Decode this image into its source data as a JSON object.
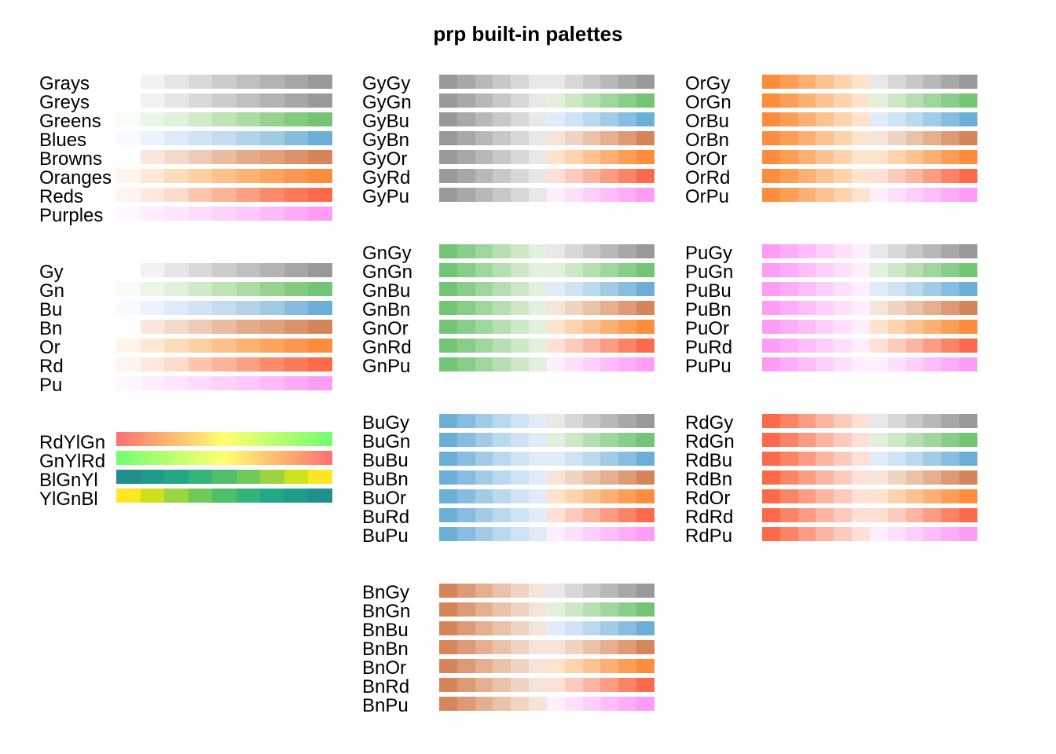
{
  "title": "prp built-in palettes",
  "colors": {
    "gray": [
      "#ffffff",
      "#f2f2f2",
      "#e6e6e6",
      "#d9d9d9",
      "#cccccc",
      "#bfbfbf",
      "#b3b3b3",
      "#a6a6a6",
      "#999999"
    ],
    "green": [
      "#f7fcf5",
      "#ebf6e8",
      "#dff1da",
      "#cfeac8",
      "#bfe3b6",
      "#acdba4",
      "#98d28f",
      "#84ca7f",
      "#74c476"
    ],
    "blue": [
      "#f7fbff",
      "#ebf3fc",
      "#dfeaf8",
      "#d2e3f3",
      "#c6dbef",
      "#b2d3e8",
      "#9fcae1",
      "#88bcdd",
      "#6baed6"
    ],
    "brown": [
      "#ffffff",
      "#f8e8e0",
      "#f3dacc",
      "#eecbb6",
      "#e9bba0",
      "#e4ab8a",
      "#dfa07a",
      "#da926a",
      "#d6855a"
    ],
    "orange": [
      "#fff5eb",
      "#fee9d6",
      "#fddcbc",
      "#fdd0a2",
      "#fdc189",
      "#fdb272",
      "#fda45e",
      "#fd9650",
      "#fd8d3c"
    ],
    "red": [
      "#fff5f0",
      "#fee9e0",
      "#fddccd",
      "#fcc5ae",
      "#fcb398",
      "#fc9f82",
      "#fc8b6c",
      "#fc7a5a",
      "#fb6a4a"
    ],
    "purple": [
      "#fff7ff",
      "#ffeefe",
      "#ffe5fd",
      "#ffdcfb",
      "#ffd2fa",
      "#ffc8f9",
      "#ffbaf8",
      "#ffaaf7",
      "#ff9cf6"
    ],
    "diverge_left": {
      "Gy": [
        "#999999",
        "#a8a8a8",
        "#b8b8b8",
        "#c8c8c8",
        "#d8d8d8",
        "#e8e8e8"
      ],
      "Gn": [
        "#74c476",
        "#89cd8a",
        "#9fd69e",
        "#b6deb2",
        "#cde7c7",
        "#e3f0dd"
      ],
      "Bu": [
        "#6baed6",
        "#86bde0",
        "#a1cbe7",
        "#bad8ee",
        "#cfe3f5",
        "#e2ecf8"
      ],
      "Bn": [
        "#d6855a",
        "#de9a74",
        "#e4ae8f",
        "#eac1a9",
        "#efd3c3",
        "#f5e4da"
      ],
      "Or": [
        "#fd8d3c",
        "#fd9e57",
        "#fdb074",
        "#fdc291",
        "#fed3ae",
        "#fee4cc"
      ],
      "Rd": [
        "#fb6a4a",
        "#fc8466",
        "#fc9c83",
        "#fcb5a1",
        "#fdcbbd",
        "#fee0d6"
      ],
      "Pu": [
        "#ff9cf6",
        "#ffadf8",
        "#ffbef9",
        "#ffcffb",
        "#ffdffc",
        "#ffeffe"
      ]
    },
    "diverge_right": {
      "Gy": [
        "#e8e8e8",
        "#d8d8d8",
        "#c8c8c8",
        "#b8b8b8",
        "#a8a8a8",
        "#999999"
      ],
      "Gn": [
        "#e3f0dd",
        "#cde7c7",
        "#b6deb2",
        "#9fd69e",
        "#89cd8a",
        "#74c476"
      ],
      "Bu": [
        "#e2ecf8",
        "#cfe3f5",
        "#bad8ee",
        "#a1cbe7",
        "#86bde0",
        "#6baed6"
      ],
      "Bn": [
        "#f5e4da",
        "#efd3c3",
        "#eac1a9",
        "#e4ae8f",
        "#de9a74",
        "#d6855a"
      ],
      "Or": [
        "#fee4cc",
        "#fed3ae",
        "#fdc291",
        "#fdb074",
        "#fd9e57",
        "#fd8d3c"
      ],
      "Rd": [
        "#fee0d6",
        "#fdcbbd",
        "#fcb5a1",
        "#fc9c83",
        "#fc8466",
        "#fb6a4a"
      ],
      "Pu": [
        "#ffeffe",
        "#ffdffc",
        "#ffcffb",
        "#ffbef9",
        "#ffadf8",
        "#ff9cf6"
      ]
    },
    "gradients": {
      "RdYlGn": "linear-gradient(to right, #ff7070, #ffb870, #ffff70, #b8ff70, #70ff70)",
      "GnYlRd": "linear-gradient(to right, #70ff70, #b8ff70, #ffff70, #ffb870, #ff7070)"
    },
    "discrete": {
      "BlGnYl": [
        "#21908c",
        "#1f9b8a",
        "#22a884",
        "#34b479",
        "#4fbe6a",
        "#6fc95a",
        "#9bd43f",
        "#cde11d",
        "#fde725"
      ],
      "YlGnBl": [
        "#fde725",
        "#cde11d",
        "#9bd43f",
        "#6fc95a",
        "#4fbe6a",
        "#34b479",
        "#22a884",
        "#1f9b8a",
        "#21908c"
      ]
    }
  },
  "groups": {
    "single": [
      "Grays",
      "Greys",
      "Greens",
      "Blues",
      "Browns",
      "Oranges",
      "Reds",
      "Purples"
    ],
    "short": [
      "Gy",
      "Gn",
      "Bu",
      "Bn",
      "Or",
      "Rd",
      "Pu"
    ],
    "special": [
      "RdYlGn",
      "GnYlRd",
      "BlGnYl",
      "YlGnBl"
    ],
    "gy": [
      "GyGy",
      "GyGn",
      "GyBu",
      "GyBn",
      "GyOr",
      "GyRd",
      "GyPu"
    ],
    "gn": [
      "GnGy",
      "GnGn",
      "GnBu",
      "GnBn",
      "GnOr",
      "GnRd",
      "GnPu"
    ],
    "bu": [
      "BuGy",
      "BuGn",
      "BuBu",
      "BuBn",
      "BuOr",
      "BuRd",
      "BuPu"
    ],
    "bn": [
      "BnGy",
      "BnGn",
      "BnBu",
      "BnBn",
      "BnOr",
      "BnRd",
      "BnPu"
    ],
    "or": [
      "OrGy",
      "OrGn",
      "OrBu",
      "OrBn",
      "OrOr",
      "OrRd",
      "OrPu"
    ],
    "pu": [
      "PuGy",
      "PuGn",
      "PuBu",
      "PuBn",
      "PuOr",
      "PuRd",
      "PuPu"
    ],
    "rd": [
      "RdGy",
      "RdGn",
      "RdBu",
      "RdBn",
      "RdOr",
      "RdRd",
      "RdPu"
    ]
  }
}
